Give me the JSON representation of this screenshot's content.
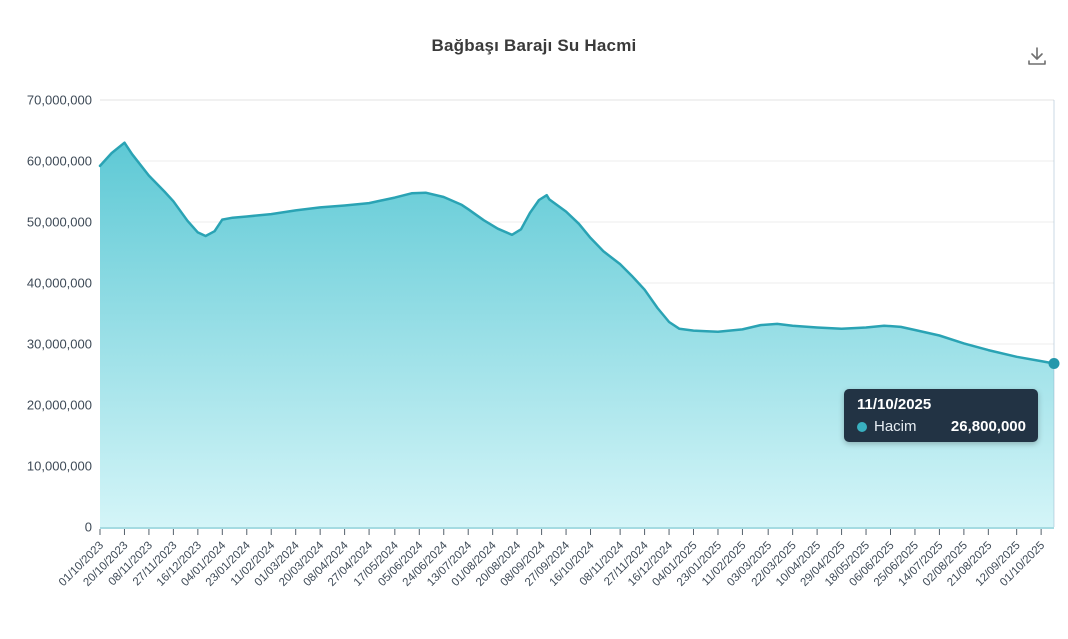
{
  "header": {
    "title": "Bağbaşı Barajı Su Hacmi",
    "download_icon": "download-arrow-tray",
    "download_icon_color": "#6f6f6f"
  },
  "tooltip": {
    "date": "11/10/2025",
    "series_label": "Hacim",
    "value": "26,800,000",
    "bg_color": "#223344",
    "dot_color": "#39b0c0"
  },
  "chart_data": {
    "type": "area",
    "title": "Bağbaşı Barajı Su Hacmi",
    "xlabel": "",
    "ylabel": "",
    "grid": true,
    "legend_position": "none",
    "ylim": [
      0,
      70000000
    ],
    "y_ticks": [
      0,
      10000000,
      20000000,
      30000000,
      40000000,
      50000000,
      60000000,
      70000000
    ],
    "y_tick_labels": [
      "0",
      "10,000,000",
      "20,000,000",
      "30,000,000",
      "40,000,000",
      "50,000,000",
      "60,000,000",
      "70,000,000"
    ],
    "categories": [
      "01/10/2023",
      "20/10/2023",
      "08/11/2023",
      "27/11/2023",
      "16/12/2023",
      "04/01/2024",
      "23/01/2024",
      "11/02/2024",
      "01/03/2024",
      "20/03/2024",
      "08/04/2024",
      "27/04/2024",
      "17/05/2024",
      "05/06/2024",
      "24/06/2024",
      "13/07/2024",
      "01/08/2024",
      "20/08/2024",
      "08/09/2024",
      "27/09/2024",
      "16/10/2024",
      "08/11/2024",
      "27/11/2024",
      "16/12/2024",
      "04/01/2025",
      "23/01/2025",
      "11/02/2025",
      "03/03/2025",
      "22/03/2025",
      "10/04/2025",
      "29/04/2025",
      "18/05/2025",
      "06/06/2025",
      "25/06/2025",
      "14/07/2025",
      "02/08/2025",
      "21/08/2025",
      "12/09/2025",
      "01/10/2025"
    ],
    "series": [
      {
        "name": "Hacim",
        "points": [
          [
            "01/10/2023",
            59200000
          ],
          [
            "10/10/2023",
            61300000
          ],
          [
            "20/10/2023",
            63000000
          ],
          [
            "26/10/2023",
            61100000
          ],
          [
            "08/11/2023",
            57600000
          ],
          [
            "20/11/2023",
            55000000
          ],
          [
            "27/11/2023",
            53400000
          ],
          [
            "08/12/2023",
            50200000
          ],
          [
            "16/12/2023",
            48300000
          ],
          [
            "22/12/2023",
            47700000
          ],
          [
            "29/12/2023",
            48500000
          ],
          [
            "04/01/2024",
            50400000
          ],
          [
            "12/01/2024",
            50700000
          ],
          [
            "23/01/2024",
            50900000
          ],
          [
            "11/02/2024",
            51300000
          ],
          [
            "01/03/2024",
            51900000
          ],
          [
            "20/03/2024",
            52400000
          ],
          [
            "08/04/2024",
            52700000
          ],
          [
            "27/04/2024",
            53100000
          ],
          [
            "17/05/2024",
            54000000
          ],
          [
            "30/05/2024",
            54700000
          ],
          [
            "10/06/2024",
            54800000
          ],
          [
            "24/06/2024",
            54100000
          ],
          [
            "08/07/2024",
            52800000
          ],
          [
            "13/07/2024",
            52100000
          ],
          [
            "25/07/2024",
            50300000
          ],
          [
            "05/08/2024",
            48900000
          ],
          [
            "16/08/2024",
            47900000
          ],
          [
            "23/08/2024",
            48800000
          ],
          [
            "30/08/2024",
            51500000
          ],
          [
            "06/09/2024",
            53600000
          ],
          [
            "12/09/2024",
            54400000
          ],
          [
            "14/09/2024",
            53700000
          ],
          [
            "27/09/2024",
            51700000
          ],
          [
            "07/10/2024",
            49700000
          ],
          [
            "16/10/2024",
            47400000
          ],
          [
            "26/10/2024",
            45200000
          ],
          [
            "08/11/2024",
            43100000
          ],
          [
            "17/11/2024",
            41200000
          ],
          [
            "27/11/2024",
            38900000
          ],
          [
            "07/12/2024",
            35900000
          ],
          [
            "16/12/2024",
            33600000
          ],
          [
            "24/12/2024",
            32500000
          ],
          [
            "04/01/2025",
            32200000
          ],
          [
            "14/01/2025",
            32100000
          ],
          [
            "23/01/2025",
            32000000
          ],
          [
            "11/02/2025",
            32400000
          ],
          [
            "25/02/2025",
            33100000
          ],
          [
            "10/03/2025",
            33300000
          ],
          [
            "22/03/2025",
            33000000
          ],
          [
            "10/04/2025",
            32700000
          ],
          [
            "29/04/2025",
            32500000
          ],
          [
            "18/05/2025",
            32700000
          ],
          [
            "01/06/2025",
            33000000
          ],
          [
            "14/06/2025",
            32800000
          ],
          [
            "25/06/2025",
            32300000
          ],
          [
            "14/07/2025",
            31400000
          ],
          [
            "02/08/2025",
            30100000
          ],
          [
            "21/08/2025",
            29000000
          ],
          [
            "12/09/2025",
            27900000
          ],
          [
            "01/10/2025",
            27200000
          ],
          [
            "11/10/2025",
            26800000
          ]
        ]
      }
    ],
    "highlight": {
      "date": "11/10/2025",
      "value": 26800000,
      "label": "26,800,000"
    },
    "colors": {
      "line": "#2aa3b4",
      "fill_top": "#5ec9d5",
      "fill_bottom": "#d4f5f8",
      "grid": "#eeeeee",
      "grid_top": "#e3e3e3",
      "axis_line": "#a5dbe2",
      "tick": "#55606b",
      "axis_label": "#3e4a57",
      "marker": "#2497ab",
      "crosshair": "rgba(140,170,195,0.45)"
    }
  }
}
